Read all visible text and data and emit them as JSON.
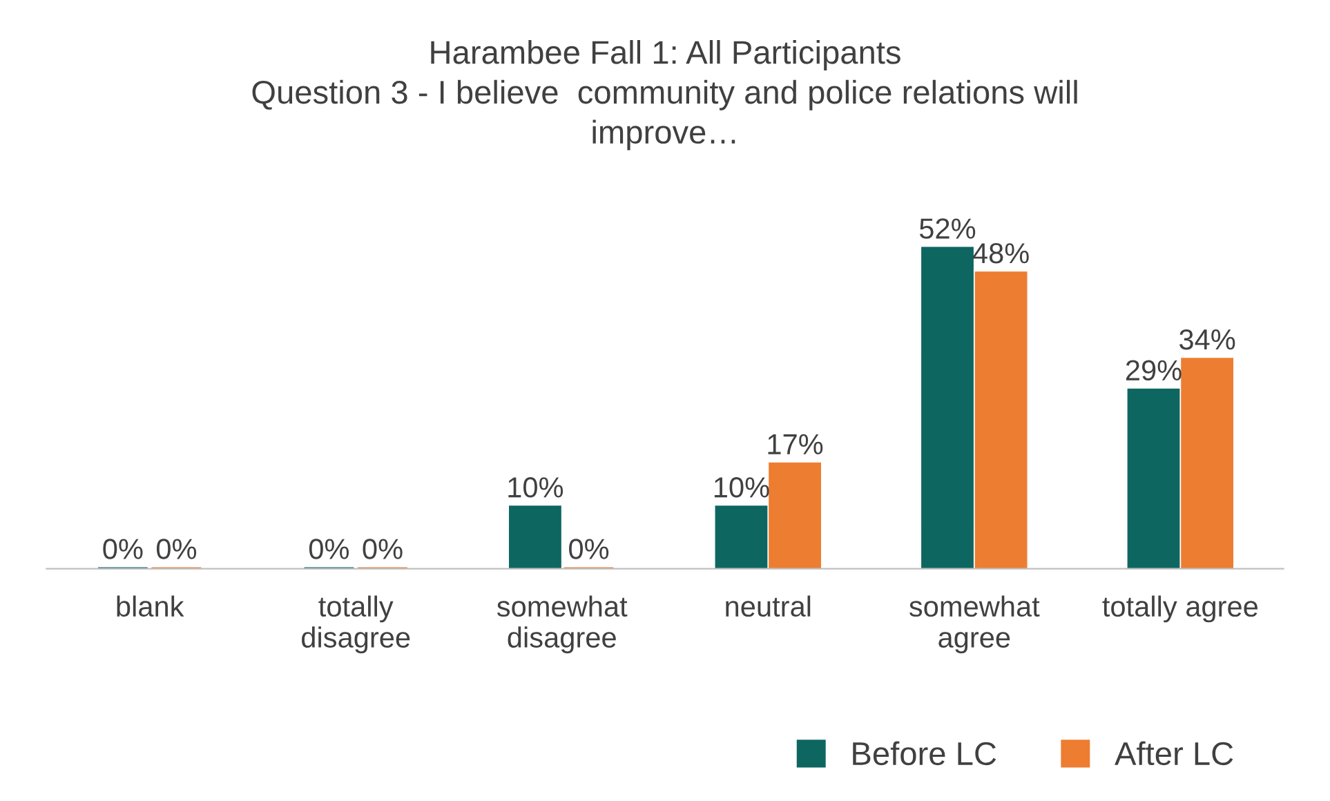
{
  "chart_data": {
    "type": "bar",
    "title": "Harambee Fall 1: All Participants\nQuestion 3 - I believe  community and police relations will\nimprove…",
    "categories": [
      "blank",
      "totally\ndisagree",
      "somewhat\ndisagree",
      "neutral",
      "somewhat\nagree",
      "totally agree"
    ],
    "series": [
      {
        "name": "Before LC",
        "color": "#0e6661",
        "values": [
          0,
          0,
          10,
          10,
          52,
          29
        ],
        "value_labels": [
          "0%",
          "0%",
          "10%",
          "10%",
          "52%",
          "29%"
        ]
      },
      {
        "name": "After LC",
        "color": "#ed7d31",
        "values": [
          0,
          0,
          0,
          17,
          48,
          34
        ],
        "value_labels": [
          "0%",
          "0%",
          "0%",
          "17%",
          "48%",
          "34%"
        ]
      }
    ],
    "legend": "bottom right",
    "grid": false
  }
}
